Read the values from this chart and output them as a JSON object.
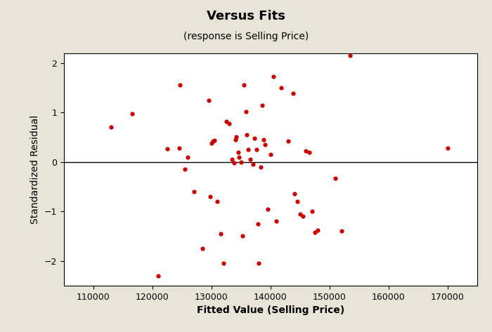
{
  "title": "Versus Fits",
  "subtitle": "(response is Selling Price)",
  "xlabel": "Fitted Value (Selling Price)",
  "ylabel": "Standardized Residual",
  "background_color": "#e8e4d8",
  "plot_bg_color": "#ffffff",
  "dot_color": "#cc0000",
  "xlim": [
    105000,
    175000
  ],
  "ylim": [
    -2.5,
    2.2
  ],
  "xticks": [
    110000,
    120000,
    130000,
    140000,
    150000,
    160000,
    170000
  ],
  "yticks": [
    -2,
    -1,
    0,
    1,
    2
  ],
  "x": [
    113000,
    116500,
    121000,
    122500,
    124500,
    124700,
    125500,
    126000,
    127000,
    128500,
    129500,
    129800,
    130000,
    130200,
    130500,
    131000,
    131500,
    132000,
    132500,
    133000,
    133500,
    133800,
    134000,
    134200,
    134500,
    134700,
    135000,
    135200,
    135500,
    135800,
    136000,
    136200,
    136500,
    137000,
    137300,
    137600,
    137900,
    138000,
    138300,
    138600,
    138800,
    139000,
    139500,
    140000,
    140500,
    141000,
    141800,
    143000,
    143800,
    144000,
    144500,
    145000,
    145500,
    146000,
    146500,
    147000,
    147500,
    148000,
    151000,
    152000,
    153500,
    170000
  ],
  "y": [
    0.7,
    0.97,
    -2.3,
    0.27,
    0.28,
    1.55,
    -0.15,
    0.1,
    -0.6,
    -1.75,
    1.25,
    -0.7,
    0.38,
    0.42,
    0.43,
    -0.8,
    -1.45,
    -2.05,
    0.82,
    0.78,
    0.05,
    -0.02,
    0.45,
    0.5,
    0.2,
    0.1,
    -0.01,
    -1.5,
    1.55,
    1.02,
    0.55,
    0.25,
    0.05,
    -0.05,
    0.48,
    0.25,
    -1.25,
    -2.05,
    -0.1,
    1.15,
    0.45,
    0.35,
    -0.95,
    0.15,
    1.72,
    -1.2,
    1.5,
    0.42,
    1.38,
    -0.65,
    -0.8,
    -1.05,
    -1.1,
    0.22,
    0.2,
    -1.0,
    -1.42,
    -1.38,
    -0.33,
    -1.4,
    2.15,
    0.28
  ]
}
